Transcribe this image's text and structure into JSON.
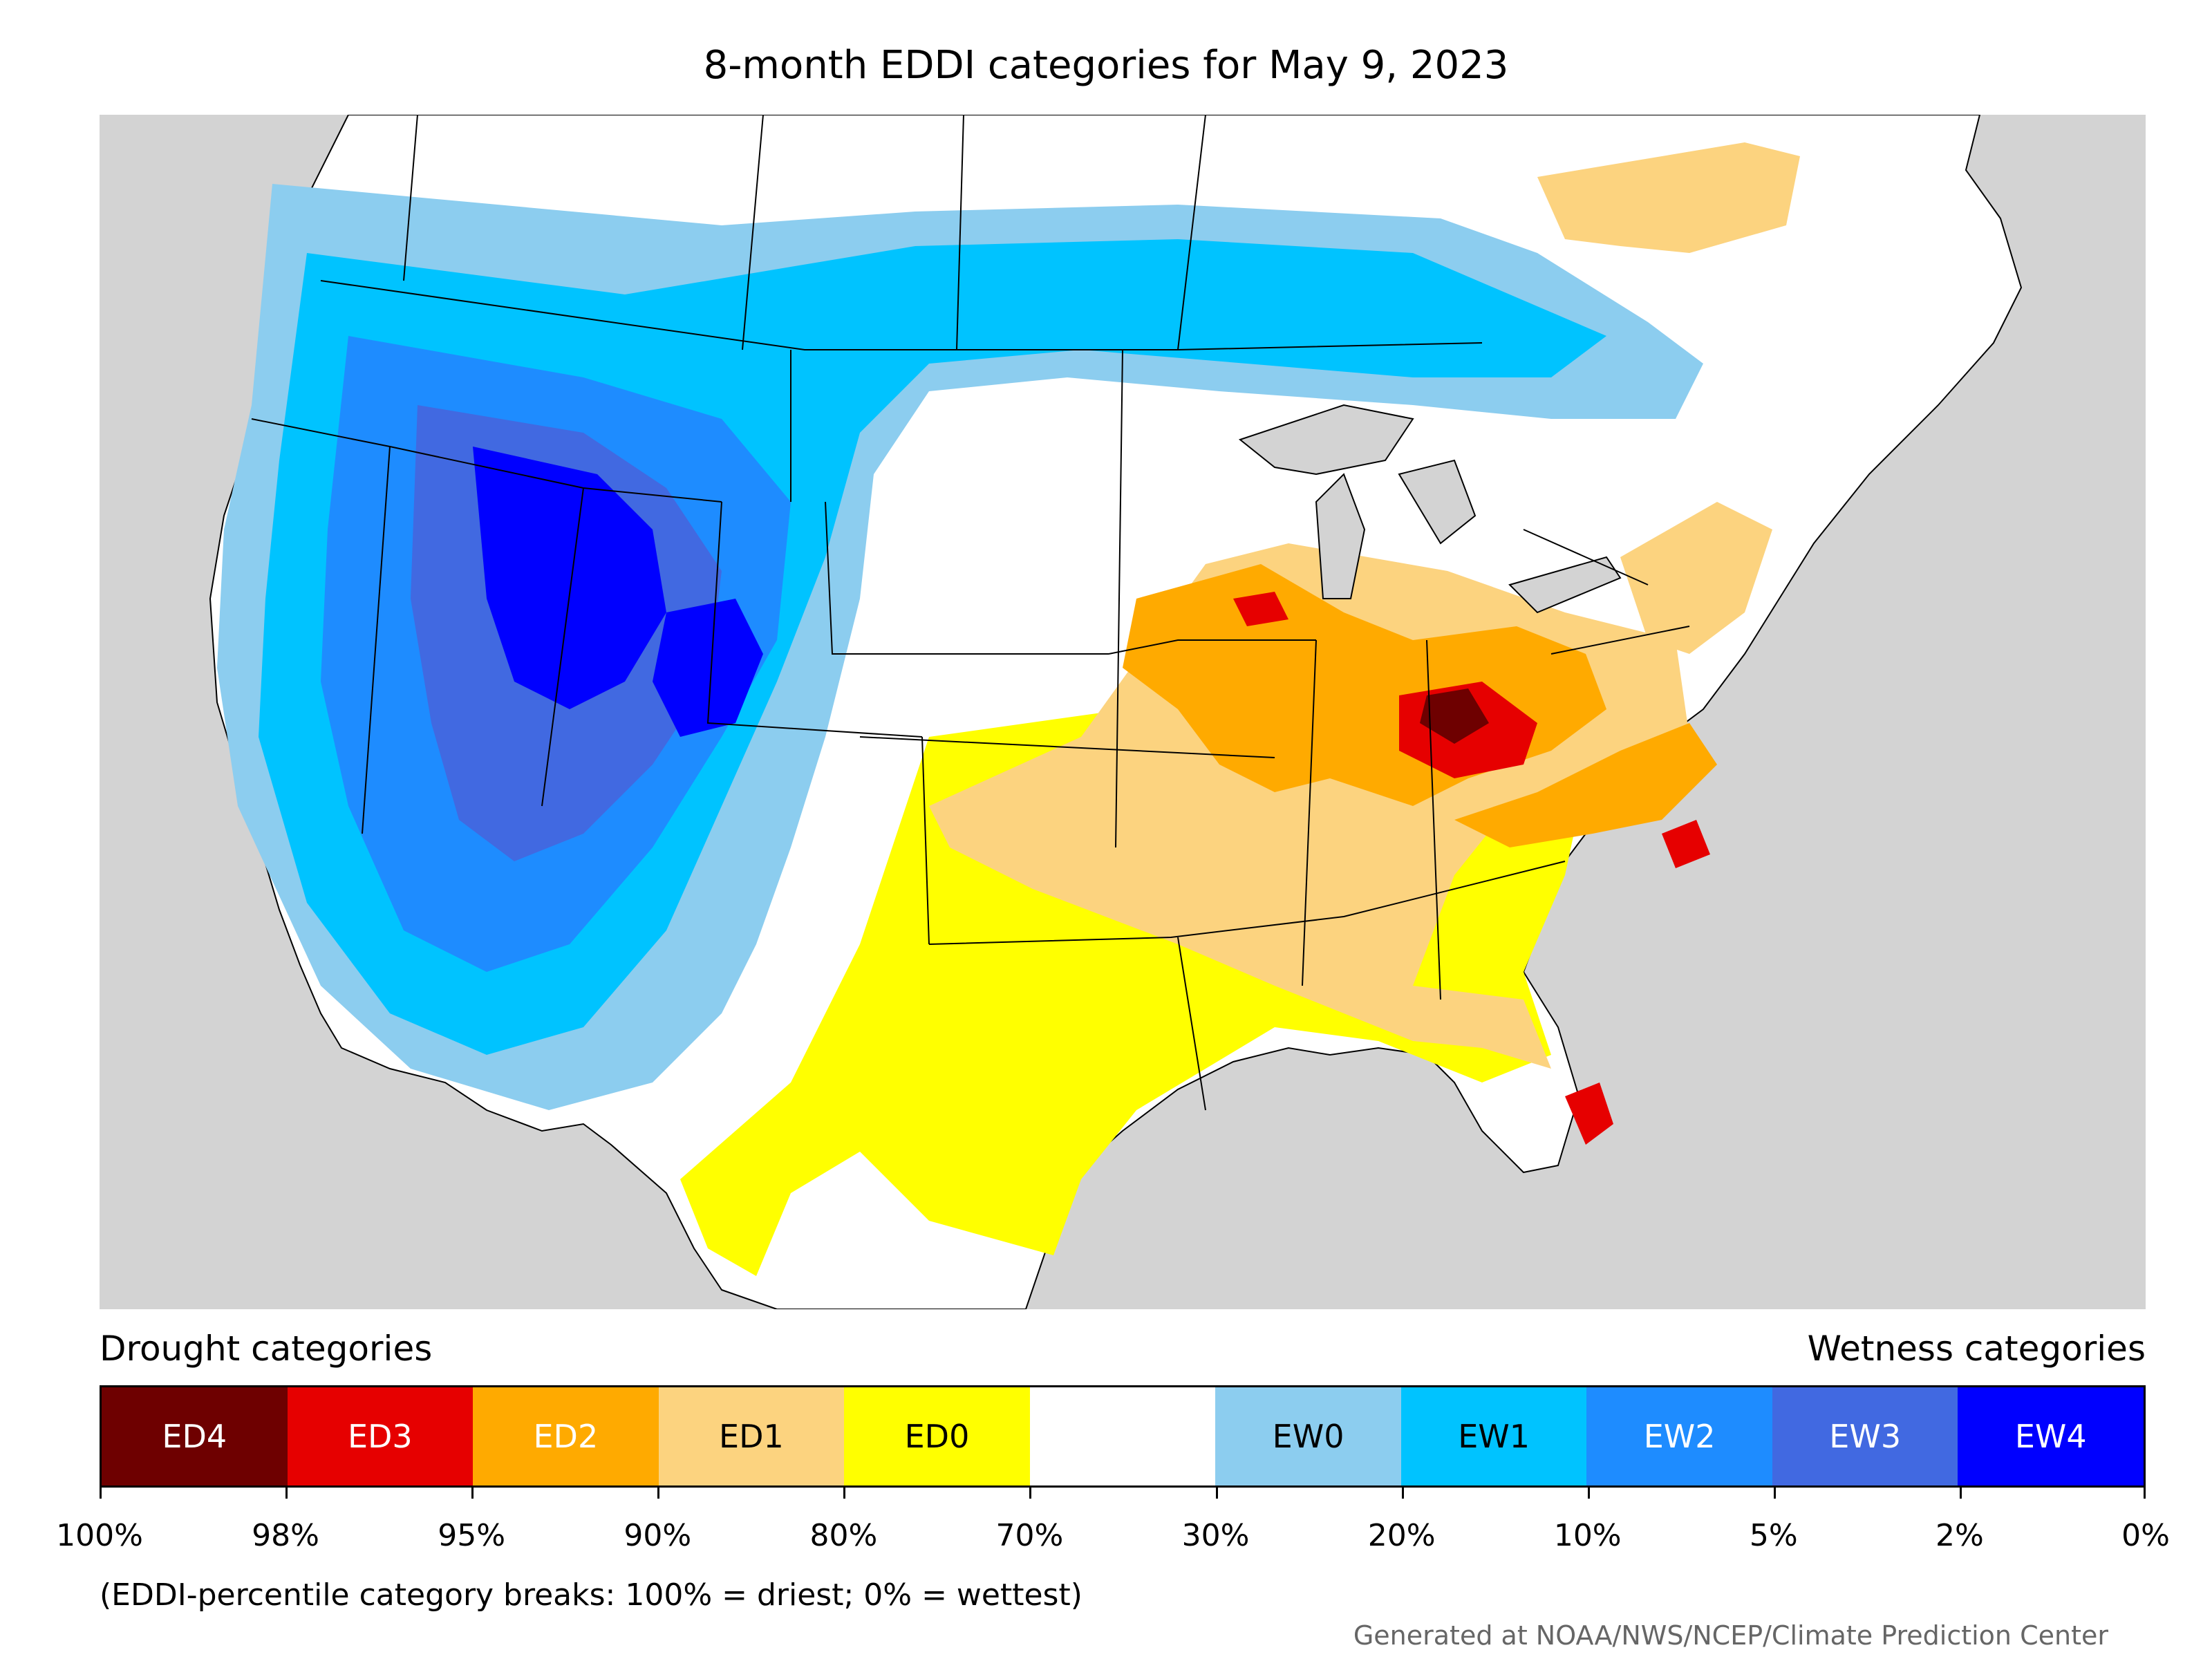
{
  "title": "8-month EDDI categories for May 9, 2023",
  "legend": {
    "drought_heading": "Drought categories",
    "wetness_heading": "Wetness categories",
    "categories": [
      {
        "label": "ED4",
        "color": "#6e0000",
        "text_color": "#ffffff"
      },
      {
        "label": "ED3",
        "color": "#e60000",
        "text_color": "#ffffff"
      },
      {
        "label": "ED2",
        "color": "#ffaa00",
        "text_color": "#ffffff"
      },
      {
        "label": "ED1",
        "color": "#fcd37f",
        "text_color": "#000000"
      },
      {
        "label": "ED0",
        "color": "#ffff00",
        "text_color": "#000000"
      },
      {
        "label": "",
        "color": "#ffffff",
        "text_color": "#000000"
      },
      {
        "label": "EW0",
        "color": "#8ccdef",
        "text_color": "#000000"
      },
      {
        "label": "EW1",
        "color": "#00c3ff",
        "text_color": "#000000"
      },
      {
        "label": "EW2",
        "color": "#1e8cff",
        "text_color": "#ffffff"
      },
      {
        "label": "EW3",
        "color": "#4169e1",
        "text_color": "#ffffff"
      },
      {
        "label": "EW4",
        "color": "#0000ff",
        "text_color": "#ffffff"
      }
    ],
    "tick_labels": [
      "100%",
      "98%",
      "95%",
      "90%",
      "80%",
      "70%",
      "30%",
      "20%",
      "10%",
      "5%",
      "2%",
      "0%"
    ]
  },
  "note": "(EDDI-percentile category breaks: 100% = driest; 0% = wettest)",
  "credit": "Generated at NOAA/NWS/NCEP/Climate Prediction Center",
  "map": {
    "background_color": "#d3d3d3",
    "land_color": "#ffffff",
    "boundary_color": "#000000"
  }
}
